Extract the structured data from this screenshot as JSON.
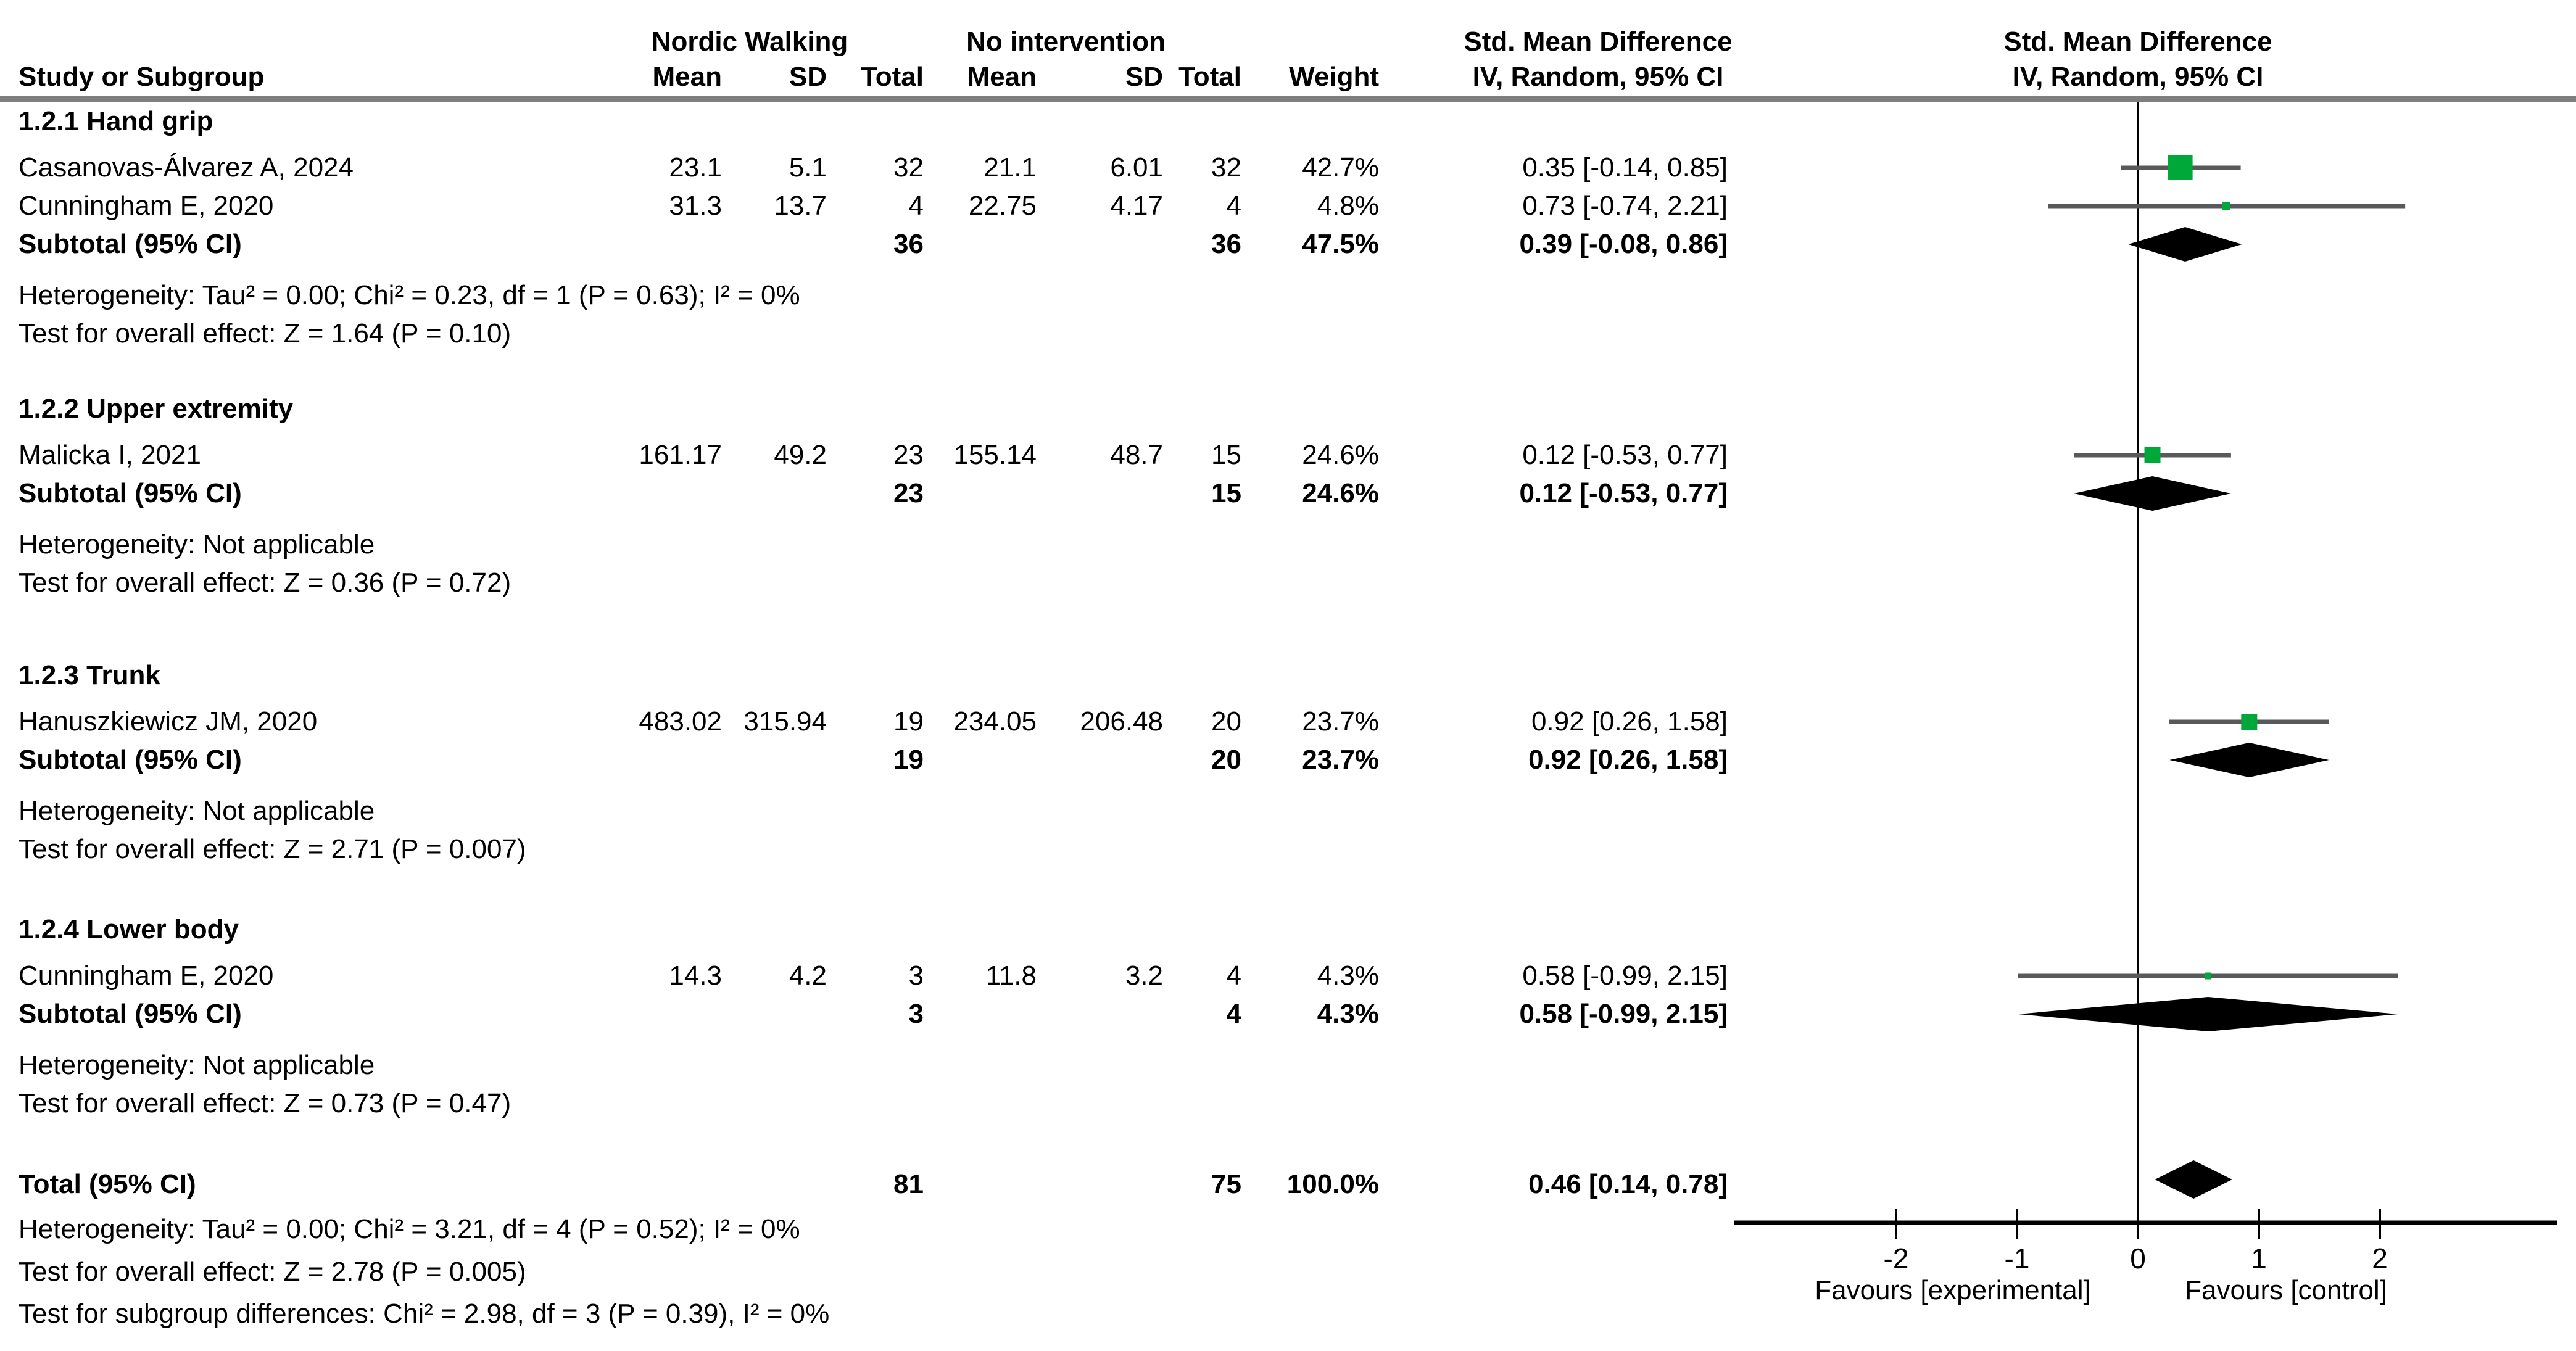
{
  "table_header": {
    "study_col": "Study or Subgroup",
    "group1": "Nordic Walking",
    "group2": "No intervention",
    "cols_group": [
      "Mean",
      "SD",
      "Total"
    ],
    "weight_col": "Weight",
    "effect_col_title": "Std. Mean Difference",
    "effect_col_method": "IV, Random, 95% CI",
    "plot_col_title": "Std. Mean Difference",
    "plot_col_method": "IV, Random, 95% CI"
  },
  "chart_data": {
    "type": "scatter",
    "variant": "forest-plot",
    "effect_measure": "Std. Mean Difference",
    "model": "IV, Random, 95% CI",
    "x_ticks": [
      -2,
      -1,
      0,
      1,
      2
    ],
    "xlim": [
      -3.35,
      3.45
    ],
    "xlabel_left": "Favours [experimental]",
    "xlabel_right": "Favours [control]",
    "marker_color": "#00a83a",
    "ci_color": "#57595b",
    "diamond_color": "#000000",
    "axis_color": "#000000",
    "sections": [
      {
        "label": "1.2.1 Hand grip",
        "studies": [
          {
            "name": "Casanovas-Álvarez A, 2024",
            "mean1": "23.1",
            "sd1": "5.1",
            "total1": "32",
            "mean2": "21.1",
            "sd2": "6.01",
            "total2": "32",
            "weight": "42.7%",
            "weight_value": 42.7,
            "smd": 0.35,
            "ci_low": -0.14,
            "ci_high": 0.85,
            "ci_text": "0.35 [-0.14, 0.85]"
          },
          {
            "name": "Cunningham E, 2020",
            "mean1": "31.3",
            "sd1": "13.7",
            "total1": "4",
            "mean2": "22.75",
            "sd2": "4.17",
            "total2": "4",
            "weight": "4.8%",
            "weight_value": 4.8,
            "smd": 0.73,
            "ci_low": -0.74,
            "ci_high": 2.21,
            "ci_text": "0.73 [-0.74, 2.21]"
          }
        ],
        "subtotal": {
          "label": "Subtotal (95% CI)",
          "total1": "36",
          "total2": "36",
          "weight": "47.5%",
          "smd": 0.39,
          "ci_low": -0.08,
          "ci_high": 0.86,
          "ci_text": "0.39 [-0.08, 0.86]"
        },
        "heterogeneity": "Heterogeneity: Tau² = 0.00; Chi² = 0.23, df = 1 (P = 0.63); I² = 0%",
        "overall_effect": "Test for overall effect: Z = 1.64 (P = 0.10)"
      },
      {
        "label": "1.2.2 Upper extremity",
        "studies": [
          {
            "name": "Malicka I, 2021",
            "mean1": "161.17",
            "sd1": "49.2",
            "total1": "23",
            "mean2": "155.14",
            "sd2": "48.7",
            "total2": "15",
            "weight": "24.6%",
            "weight_value": 24.6,
            "smd": 0.12,
            "ci_low": -0.53,
            "ci_high": 0.77,
            "ci_text": "0.12 [-0.53, 0.77]"
          }
        ],
        "subtotal": {
          "label": "Subtotal (95% CI)",
          "total1": "23",
          "total2": "15",
          "weight": "24.6%",
          "smd": 0.12,
          "ci_low": -0.53,
          "ci_high": 0.77,
          "ci_text": "0.12 [-0.53, 0.77]"
        },
        "heterogeneity": "Heterogeneity: Not applicable",
        "overall_effect": "Test for overall effect: Z = 0.36 (P = 0.72)"
      },
      {
        "label": "1.2.3 Trunk",
        "studies": [
          {
            "name": "Hanuszkiewicz JM, 2020",
            "mean1": "483.02",
            "sd1": "315.94",
            "total1": "19",
            "mean2": "234.05",
            "sd2": "206.48",
            "total2": "20",
            "weight": "23.7%",
            "weight_value": 23.7,
            "smd": 0.92,
            "ci_low": 0.26,
            "ci_high": 1.58,
            "ci_text": "0.92 [0.26, 1.58]"
          }
        ],
        "subtotal": {
          "label": "Subtotal (95% CI)",
          "total1": "19",
          "total2": "20",
          "weight": "23.7%",
          "smd": 0.92,
          "ci_low": 0.26,
          "ci_high": 1.58,
          "ci_text": "0.92 [0.26, 1.58]"
        },
        "heterogeneity": "Heterogeneity: Not applicable",
        "overall_effect": "Test for overall effect: Z = 2.71 (P = 0.007)"
      },
      {
        "label": "1.2.4 Lower body",
        "studies": [
          {
            "name": "Cunningham E, 2020",
            "mean1": "14.3",
            "sd1": "4.2",
            "total1": "3",
            "mean2": "11.8",
            "sd2": "3.2",
            "total2": "4",
            "weight": "4.3%",
            "weight_value": 4.3,
            "smd": 0.58,
            "ci_low": -0.99,
            "ci_high": 2.15,
            "ci_text": "0.58 [-0.99, 2.15]"
          }
        ],
        "subtotal": {
          "label": "Subtotal (95% CI)",
          "total1": "3",
          "total2": "4",
          "weight": "4.3%",
          "smd": 0.58,
          "ci_low": -0.99,
          "ci_high": 2.15,
          "ci_text": "0.58 [-0.99, 2.15]"
        },
        "heterogeneity": "Heterogeneity: Not applicable",
        "overall_effect": "Test for overall effect: Z = 0.73 (P = 0.47)"
      }
    ],
    "total": {
      "label": "Total (95% CI)",
      "total1": "81",
      "total2": "75",
      "weight": "100.0%",
      "smd": 0.46,
      "ci_low": 0.14,
      "ci_high": 0.78,
      "ci_text": "0.46 [0.14, 0.78]",
      "heterogeneity": "Heterogeneity: Tau² = 0.00; Chi² = 3.21, df = 4 (P = 0.52); I² = 0%",
      "overall_effect": "Test for overall effect: Z = 2.78 (P = 0.005)",
      "subgroup_diff": "Test for subgroup differences: Chi² = 2.98, df = 3 (P = 0.39), I² = 0%"
    }
  }
}
